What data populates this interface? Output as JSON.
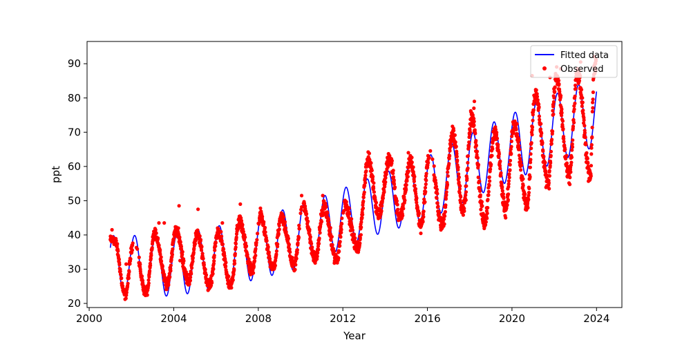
{
  "chart_data": {
    "type": "scatter",
    "title": "",
    "xlabel": "Year",
    "ylabel": "ppt",
    "xlim": [
      1999.9,
      2025.2
    ],
    "ylim": [
      18.8,
      96.5
    ],
    "xticks": [
      2000,
      2004,
      2008,
      2012,
      2016,
      2020,
      2024
    ],
    "yticks": [
      20,
      30,
      40,
      50,
      60,
      70,
      80,
      90
    ],
    "grid": false,
    "legend": {
      "placement": "top-right",
      "entries": [
        {
          "label": "Fitted data",
          "color": "#0000ff",
          "marker": "line"
        },
        {
          "label": "Observed",
          "color": "#ff0000",
          "marker": "dot"
        }
      ]
    },
    "series": [
      {
        "name": "Fitted data",
        "kind": "line",
        "color": "#0000ff",
        "model": {
          "x_start": 2001.0,
          "x_end": 2024.0,
          "trend_knots": [
            [
              2001.0,
              31.2
            ],
            [
              2004.0,
              31.0
            ],
            [
              2007.0,
              34.7
            ],
            [
              2010.0,
              39.5
            ],
            [
              2013.0,
              47.5
            ],
            [
              2016.0,
              53.7
            ],
            [
              2019.0,
              63.0
            ],
            [
              2022.0,
              71.0
            ],
            [
              2024.0,
              76.0
            ]
          ],
          "amplitude_knots": [
            [
              2001.0,
              8.6
            ],
            [
              2005.0,
              9.0
            ],
            [
              2010.0,
              9.2
            ],
            [
              2013.0,
              8.5
            ],
            [
              2016.0,
              9.2
            ],
            [
              2019.0,
              9.6
            ],
            [
              2022.0,
              10.0
            ],
            [
              2024.0,
              10.0
            ]
          ],
          "peak_phase_years": 0.15
        }
      },
      {
        "name": "Observed",
        "kind": "scatter",
        "color": "#ff0000",
        "cycle_peaks": [
          [
            2001.2,
            38.5
          ],
          [
            2002.1,
            38.0
          ],
          [
            2003.1,
            40.5
          ],
          [
            2004.1,
            41.5
          ],
          [
            2005.1,
            40.0
          ],
          [
            2006.1,
            41.0
          ],
          [
            2007.1,
            44.0
          ],
          [
            2008.1,
            45.0
          ],
          [
            2009.1,
            45.0
          ],
          [
            2010.1,
            49.0
          ],
          [
            2011.1,
            48.0
          ],
          [
            2012.1,
            49.0
          ],
          [
            2013.2,
            62.0
          ],
          [
            2014.2,
            62.0
          ],
          [
            2015.2,
            61.0
          ],
          [
            2016.1,
            64.0
          ],
          [
            2017.2,
            70.0
          ],
          [
            2018.1,
            74.0
          ],
          [
            2019.2,
            70.0
          ],
          [
            2020.1,
            73.0
          ],
          [
            2021.1,
            81.0
          ],
          [
            2022.1,
            86.0
          ],
          [
            2023.1,
            87.0
          ],
          [
            2023.9,
            89.0
          ]
        ],
        "cycle_troughs": [
          [
            2001.7,
            22.5
          ],
          [
            2002.7,
            23.0
          ],
          [
            2003.7,
            25.5
          ],
          [
            2004.7,
            26.5
          ],
          [
            2005.7,
            25.0
          ],
          [
            2006.7,
            25.0
          ],
          [
            2007.7,
            29.5
          ],
          [
            2008.7,
            30.0
          ],
          [
            2009.7,
            31.0
          ],
          [
            2010.7,
            33.0
          ],
          [
            2011.7,
            32.5
          ],
          [
            2012.7,
            36.0
          ],
          [
            2013.7,
            46.0
          ],
          [
            2014.7,
            45.0
          ],
          [
            2015.7,
            43.0
          ],
          [
            2016.7,
            43.0
          ],
          [
            2017.7,
            47.0
          ],
          [
            2018.7,
            44.0
          ],
          [
            2019.7,
            47.0
          ],
          [
            2020.7,
            49.0
          ],
          [
            2021.7,
            55.5
          ],
          [
            2022.7,
            57.0
          ],
          [
            2023.7,
            57.5
          ]
        ],
        "outliers": [
          [
            2001.08,
            41.5
          ],
          [
            2003.3,
            43.5
          ],
          [
            2003.55,
            43.5
          ],
          [
            2004.25,
            48.5
          ],
          [
            2005.15,
            47.5
          ],
          [
            2006.3,
            43.5
          ],
          [
            2007.15,
            49.0
          ],
          [
            2008.1,
            47.8
          ],
          [
            2010.05,
            51.5
          ],
          [
            2011.05,
            51.5
          ],
          [
            2015.1,
            64.0
          ],
          [
            2018.22,
            79.0
          ],
          [
            2018.2,
            77.0
          ],
          [
            2018.15,
            75.0
          ],
          [
            2020.95,
            86.5
          ],
          [
            2021.8,
            86.0
          ],
          [
            2022.3,
            88.5
          ],
          [
            2023.25,
            90.5
          ],
          [
            2023.95,
            90.0
          ],
          [
            2022.6,
            58.5
          ],
          [
            2023.6,
            60.0
          ],
          [
            2019.8,
            53.5
          ],
          [
            2004.3,
            32.5
          ],
          [
            2001.75,
            31.5
          ]
        ]
      }
    ]
  }
}
